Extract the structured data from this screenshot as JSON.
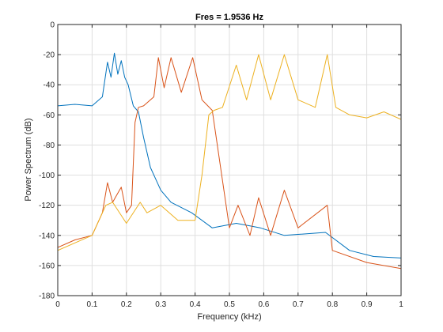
{
  "chart_data": {
    "type": "line",
    "title": "Fres = 1.9536 Hz",
    "xlabel": "Frequency (kHz)",
    "ylabel": "Power Spectrum (dB)",
    "xlim": [
      0,
      1
    ],
    "ylim": [
      -180,
      0
    ],
    "xticks": [
      0,
      0.1,
      0.2,
      0.3,
      0.4,
      0.5,
      0.6,
      0.7,
      0.8,
      0.9,
      1
    ],
    "xtick_labels": [
      "0",
      "0.1",
      "0.2",
      "0.3",
      "0.4",
      "0.5",
      "0.6",
      "0.7",
      "0.8",
      "0.9",
      "1"
    ],
    "yticks": [
      0,
      -20,
      -40,
      -60,
      -80,
      -100,
      -120,
      -140,
      -160,
      -180
    ],
    "ytick_labels": [
      "0",
      "-20",
      "-40",
      "-60",
      "-80",
      "-100",
      "-120",
      "-140",
      "-160",
      "-180"
    ],
    "grid": true,
    "legend": "none",
    "series": [
      {
        "color": "#0072BD",
        "x": [
          0,
          0.05,
          0.1,
          0.13,
          0.145,
          0.155,
          0.165,
          0.175,
          0.185,
          0.195,
          0.205,
          0.22,
          0.235,
          0.25,
          0.27,
          0.29,
          0.3,
          0.33,
          0.39,
          0.45,
          0.52,
          0.59,
          0.66,
          0.78,
          0.85,
          0.92,
          1
        ],
        "y": [
          -54,
          -53,
          -54,
          -48,
          -25,
          -35,
          -19,
          -33,
          -24,
          -35,
          -40,
          -54,
          -58,
          -75,
          -95,
          -105,
          -110,
          -118,
          -125,
          -135,
          -132,
          -135,
          -140,
          -138,
          -150,
          -154,
          -155
        ]
      },
      {
        "color": "#D95319",
        "x": [
          0,
          0.05,
          0.1,
          0.13,
          0.145,
          0.16,
          0.175,
          0.185,
          0.2,
          0.215,
          0.225,
          0.235,
          0.25,
          0.28,
          0.293,
          0.31,
          0.33,
          0.36,
          0.393,
          0.42,
          0.45,
          0.5,
          0.525,
          0.56,
          0.585,
          0.62,
          0.66,
          0.7,
          0.785,
          0.8,
          0.9,
          1
        ],
        "y": [
          -148,
          -143,
          -140,
          -125,
          -105,
          -118,
          -112,
          -108,
          -125,
          -120,
          -65,
          -55,
          -54,
          -48,
          -22,
          -42,
          -22,
          -45,
          -22,
          -50,
          -57,
          -135,
          -120,
          -140,
          -115,
          -140,
          -110,
          -135,
          -120,
          -150,
          -158,
          -162
        ]
      },
      {
        "color": "#EDB120",
        "x": [
          0,
          0.1,
          0.14,
          0.16,
          0.2,
          0.24,
          0.26,
          0.3,
          0.35,
          0.4,
          0.42,
          0.44,
          0.455,
          0.48,
          0.52,
          0.55,
          0.585,
          0.62,
          0.66,
          0.7,
          0.75,
          0.785,
          0.81,
          0.85,
          0.9,
          0.95,
          1
        ],
        "y": [
          -150,
          -140,
          -120,
          -118,
          -132,
          -118,
          -125,
          -120,
          -130,
          -130,
          -100,
          -60,
          -57,
          -55,
          -27,
          -50,
          -20,
          -50,
          -20,
          -50,
          -55,
          -20,
          -55,
          -60,
          -62,
          -58,
          -63
        ]
      }
    ]
  }
}
